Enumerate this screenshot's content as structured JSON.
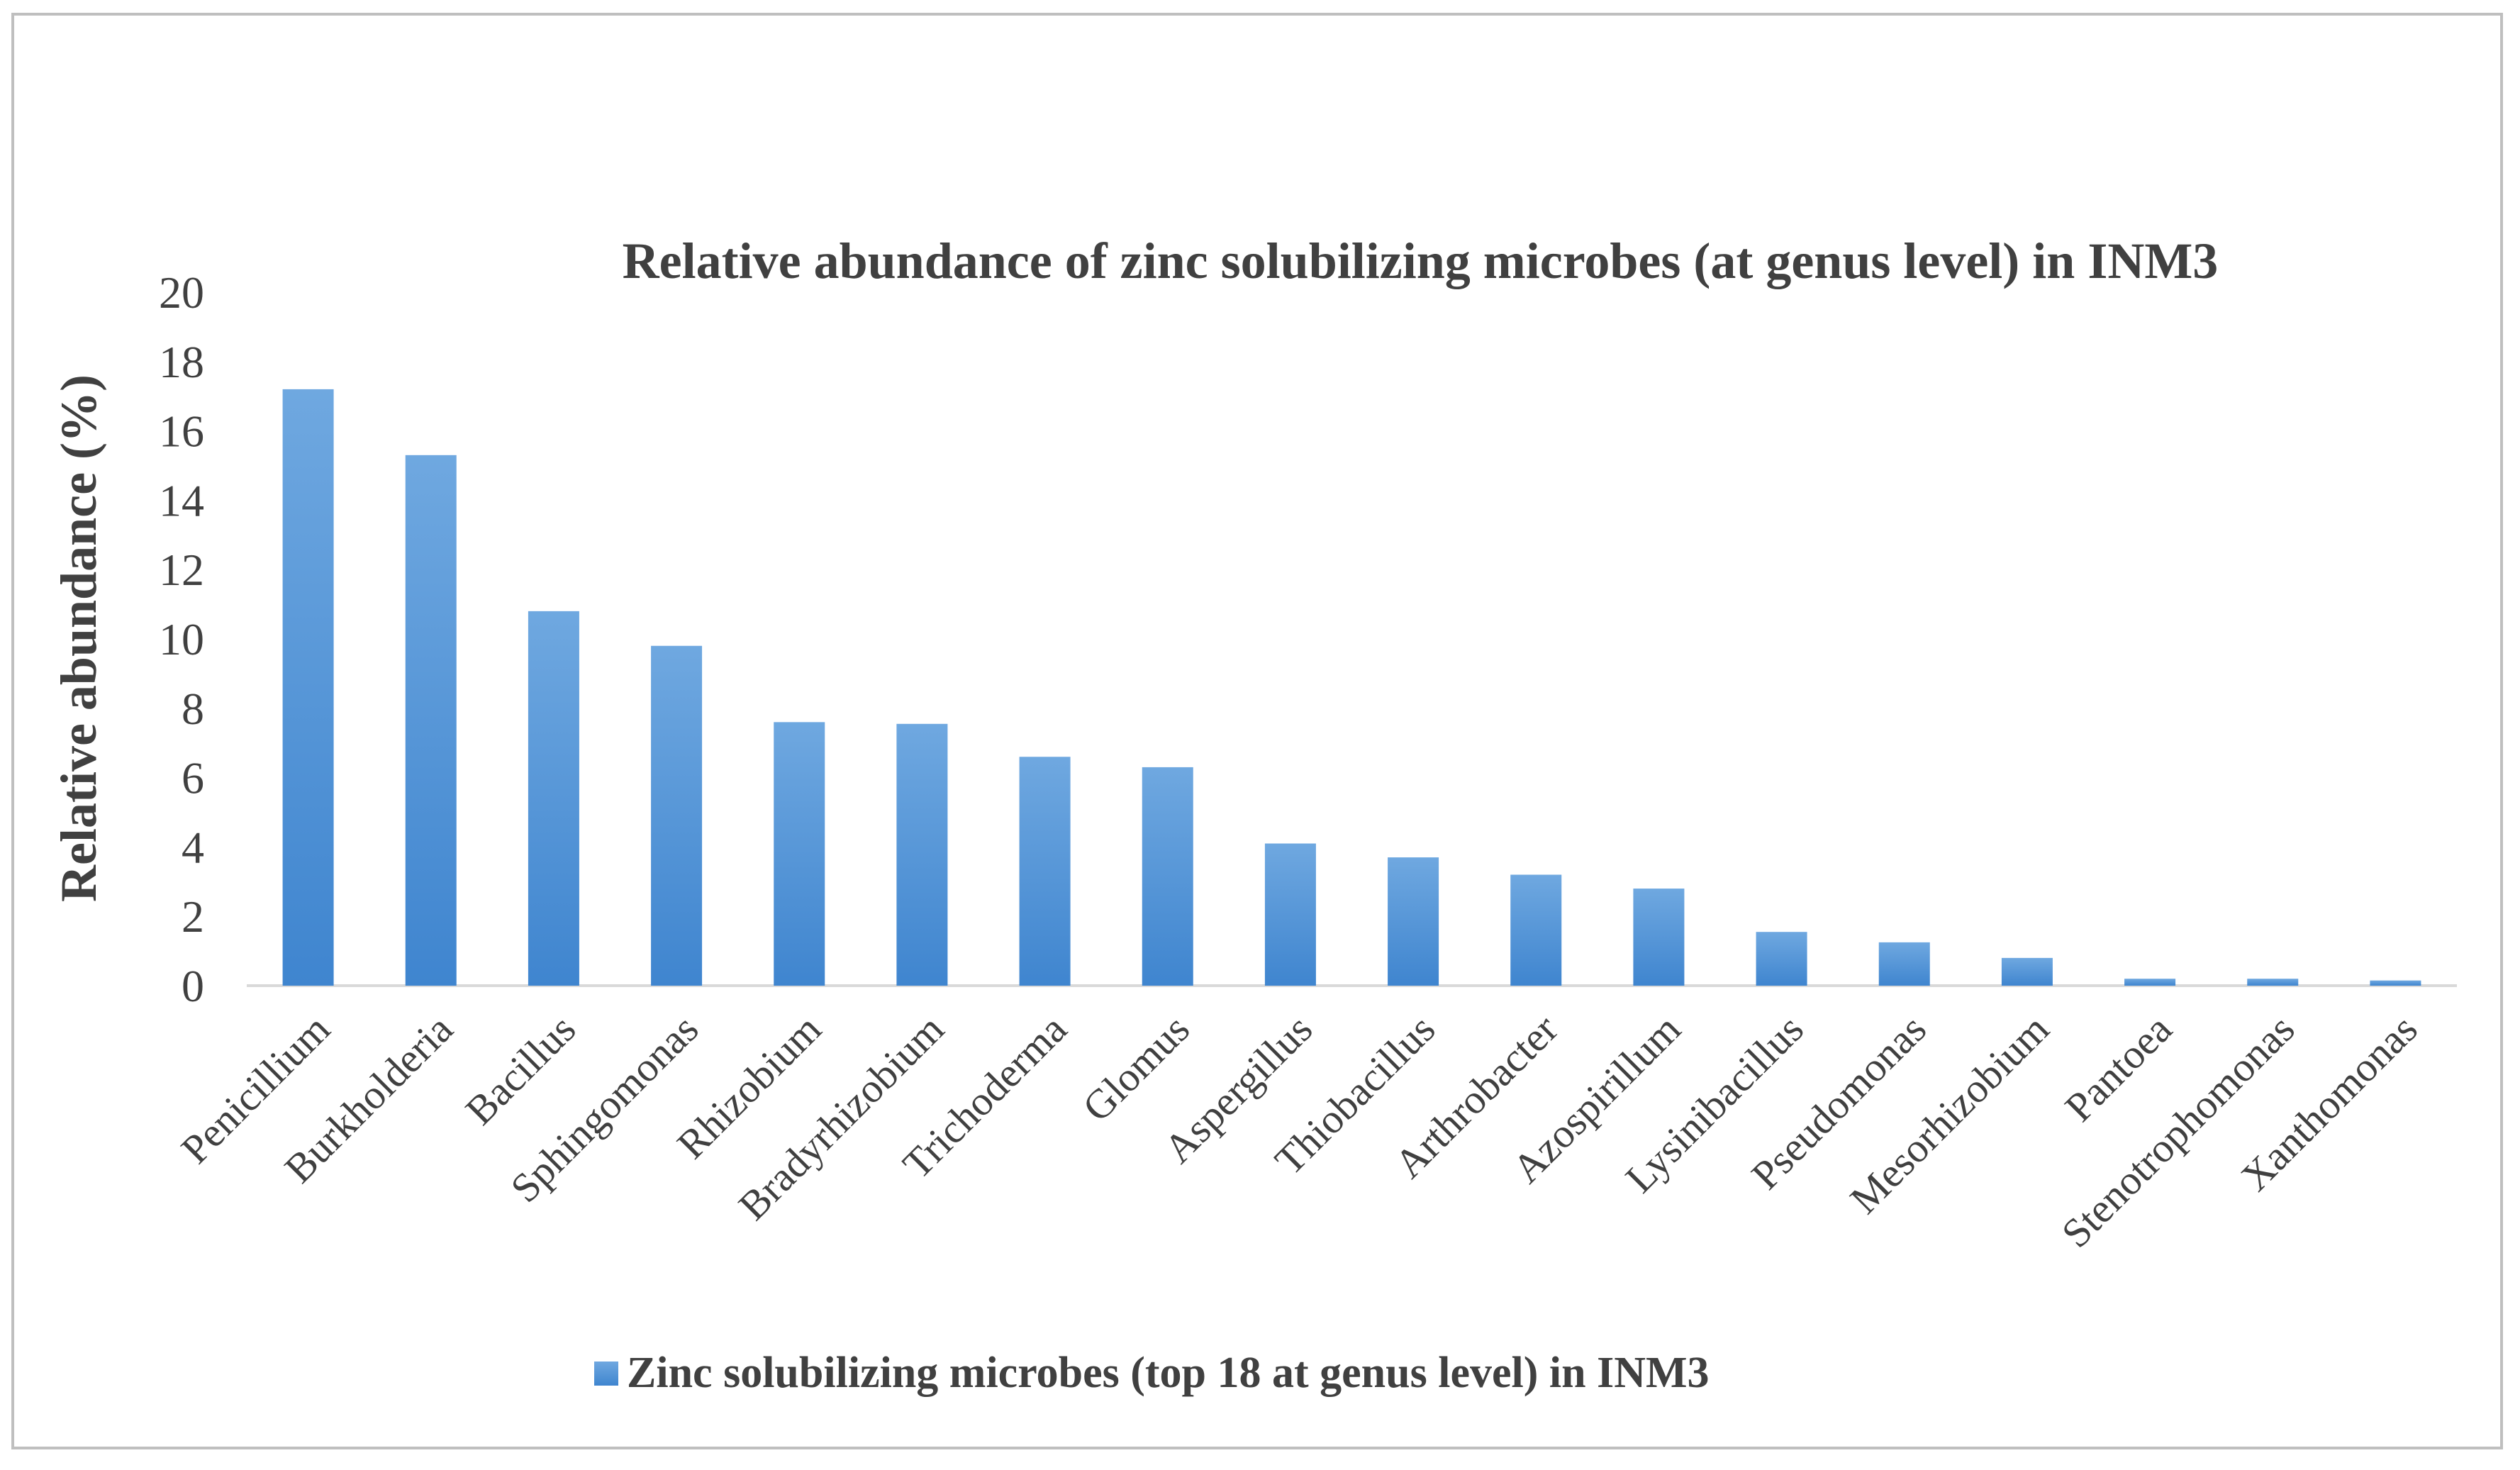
{
  "chart_data": {
    "type": "bar",
    "title": "Relative abundance of zinc solubilizing microbes (at genus level) in INM3",
    "xlabel": "",
    "ylabel": "Relative abundance (%)",
    "ylim": [
      0,
      20
    ],
    "yticks": [
      0,
      2,
      4,
      6,
      8,
      10,
      12,
      14,
      16,
      18,
      20
    ],
    "grid": false,
    "legend_position": "bottom-left",
    "categories": [
      "Penicillium",
      "Burkholderia",
      "Bacillus",
      "Sphingomonas",
      "Rhizobium",
      "Bradyrhizobium",
      "Trichoderma",
      "Glomus",
      "Aspergillus",
      "Thiobacillus",
      "Arthrobacter",
      "Azospirillum",
      "Lysinibacillus",
      "Pseudomonas",
      "Mesorhizobium",
      "Pantoea",
      "Stenotrophomonas",
      "Xanthomonas"
    ],
    "series": [
      {
        "name": "Zinc solubilizing microbes (top 18 at genus level) in INM3",
        "color": "#4a8fd6",
        "values": [
          17.2,
          15.3,
          10.8,
          9.8,
          7.6,
          7.55,
          6.6,
          6.3,
          4.1,
          3.7,
          3.2,
          2.8,
          1.55,
          1.25,
          0.8,
          0.2,
          0.2,
          0.15
        ]
      }
    ]
  },
  "colors": {
    "bar_top": "#6fa8e0",
    "bar_bottom": "#3f85cf",
    "text": "#404040",
    "axis": "#d9d9d9",
    "frame": "#bfbfbf"
  }
}
